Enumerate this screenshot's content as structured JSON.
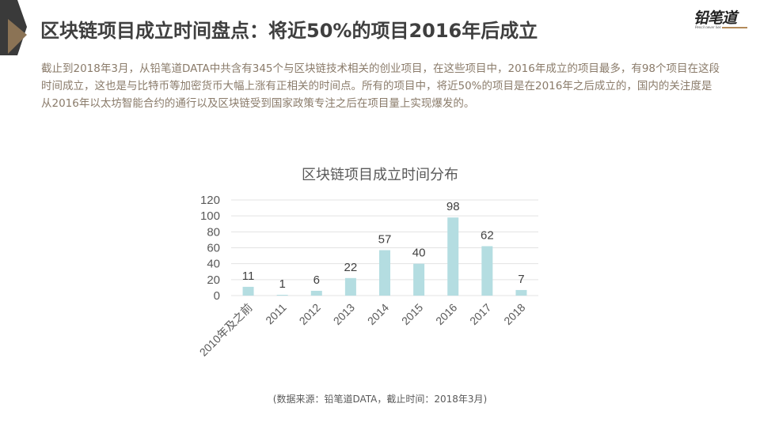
{
  "header": {
    "title": "区块链项目成立时间盘点：将近50%的项目2016年后成立",
    "logo": {
      "text": "铅笔道",
      "subtitle": "Pencil never lies"
    }
  },
  "description": "截止到2018年3月，从铅笔道DATA中共含有345个与区块链技术相关的创业项目，在这些项目中，2016年成立的项目最多，有98个项目在这段时间成立，这也是与比特币等加密货币大幅上涨有正相关的时间点。所有的项目中，将近50%的项目是在2016年之后成立的，国内的关注度是从2016年以太坊智能合约的通行以及区块链受到国家政策专注之后在项目量上实现爆发的。",
  "colors": {
    "bar": "#b4dde1",
    "corner_dark": "#3a3a3a",
    "corner_accent": "#8b7355",
    "grid": "#e3e3e3"
  },
  "chart_data": {
    "type": "bar",
    "title": "区块链项目成立时间分布",
    "categories": [
      "2010年及之前",
      "2011",
      "2012",
      "2013",
      "2014",
      "2015",
      "2016",
      "2017",
      "2018"
    ],
    "values": [
      11,
      1,
      6,
      22,
      57,
      40,
      98,
      62,
      7
    ],
    "xlabel": "",
    "ylabel": "",
    "ylim": [
      0,
      120
    ],
    "yticks": [
      0,
      20,
      40,
      60,
      80,
      100,
      120
    ],
    "grid": true,
    "data_labels": true,
    "legend": "none"
  },
  "footer": {
    "source": "(数据来源：铅笔道DATA，截止时间：2018年3月)"
  }
}
